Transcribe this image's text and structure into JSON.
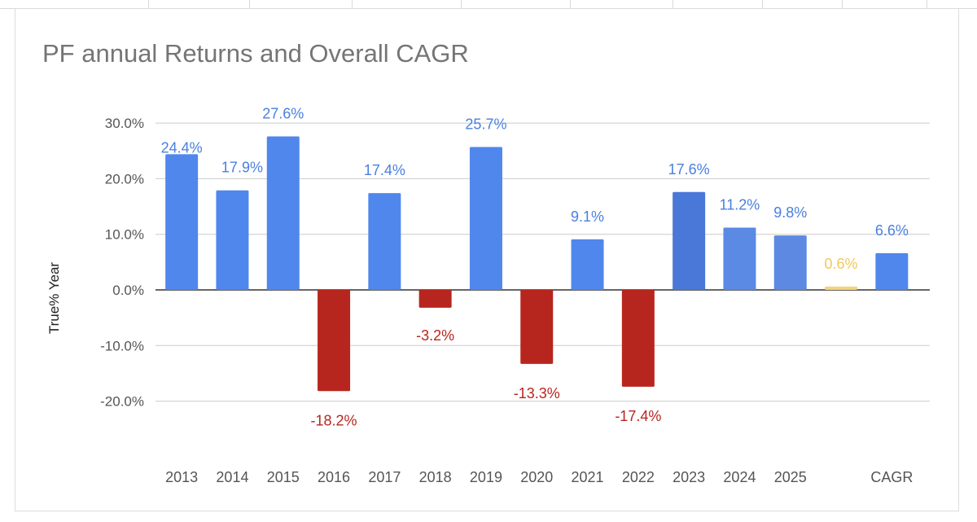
{
  "chart_data": {
    "type": "bar",
    "title": "PF annual Returns and Overall CAGR",
    "xlabel": "",
    "ylabel": "True% Year",
    "ylim": [
      -30,
      30
    ],
    "yticks": [
      "30.0%",
      "20.0%",
      "10.0%",
      "0.0%",
      "-10.0%",
      "-20.0%"
    ],
    "ytick_values": [
      30,
      20,
      10,
      0,
      -10,
      -20
    ],
    "grid": true,
    "categories": [
      "2013",
      "2014",
      "2015",
      "2016",
      "2017",
      "2018",
      "2019",
      "2020",
      "2021",
      "2022",
      "2023",
      "2024",
      "2025",
      "",
      "CAGR"
    ],
    "values": [
      24.4,
      17.9,
      27.6,
      -18.2,
      17.4,
      -3.2,
      25.7,
      -13.3,
      9.1,
      -17.4,
      17.6,
      11.2,
      9.8,
      0.6,
      6.6
    ],
    "labels": [
      "24.4%",
      "17.9%",
      "27.6%",
      "-18.2%",
      "17.4%",
      "-3.2%",
      "25.7%",
      "-13.3%",
      "9.1%",
      "-17.4%",
      "17.6%",
      "11.2%",
      "9.8%",
      "0.6%",
      "6.6%"
    ],
    "colors": {
      "positive": "#5087ec",
      "negative": "#b7261e",
      "highlight_2023": "#4a78d8",
      "highlight_2024": "#5b8ae5",
      "highlight_2025": "#5d89e3",
      "small": "#f3d37a",
      "positive_label": "#4a7fe0",
      "negative_label": "#b7261e",
      "small_label": "#f0c85a"
    }
  }
}
